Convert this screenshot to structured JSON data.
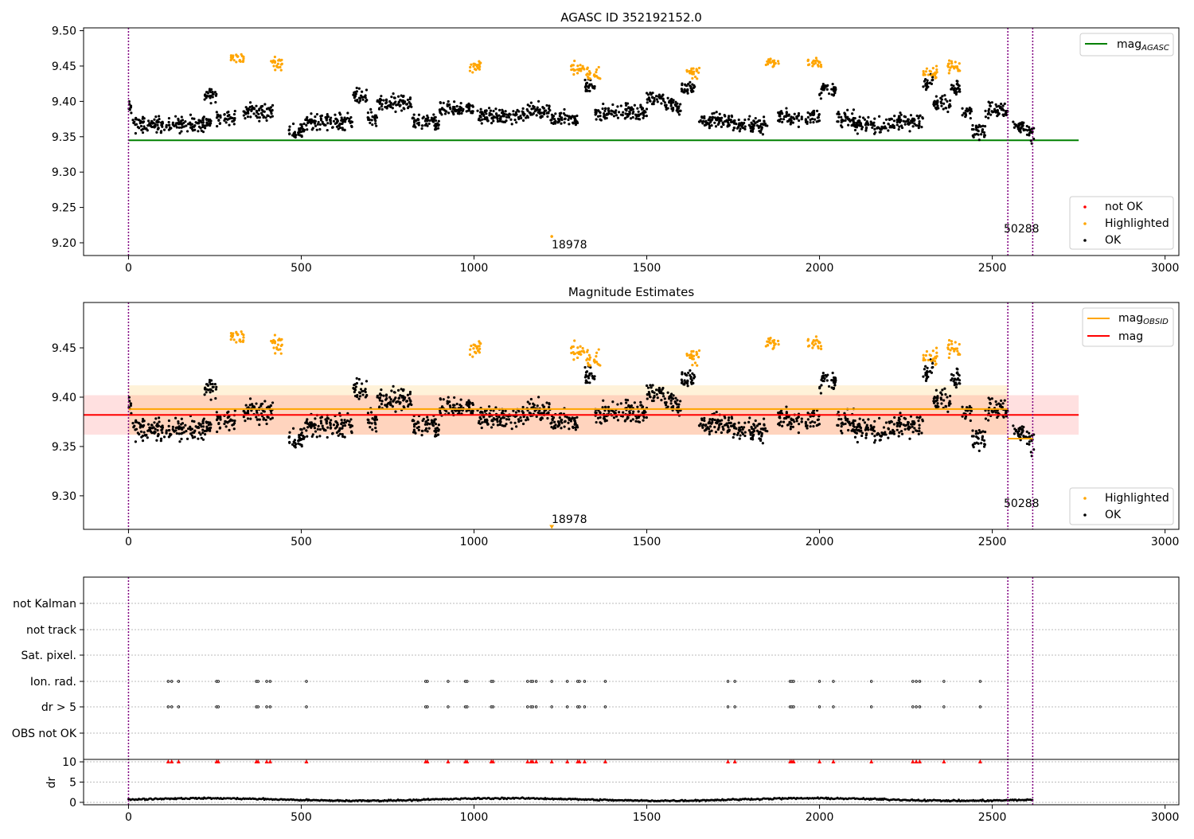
{
  "colors": {
    "ok": "#000000",
    "highlighted": "#ffa500",
    "not_ok": "#ff0000",
    "mag_agasc": "#008000",
    "mag_obsid": "#ffa500",
    "mag": "#ff0000",
    "vline": "#800080"
  },
  "markers": {
    "obsid_start_x": [
      0,
      2545,
      2617
    ],
    "obsid_labels": [
      {
        "x": 1220,
        "text": "18978"
      },
      {
        "x": 2545,
        "text": "50288"
      }
    ]
  },
  "chart_data": [
    {
      "type": "scatter",
      "title": "AGASC ID 352192152.0",
      "xlim": [
        -130,
        3040
      ],
      "ylim": [
        9.182,
        9.504
      ],
      "x_ticks": [
        0,
        500,
        1000,
        1500,
        2000,
        2500,
        3000
      ],
      "y_ticks": [
        9.2,
        9.25,
        9.3,
        9.35,
        9.4,
        9.45,
        9.5
      ],
      "y_tick_labels": [
        "9.20",
        "9.25",
        "9.30",
        "9.35",
        "9.40",
        "9.45",
        "9.50"
      ],
      "hlines": [
        {
          "name": "mag_AGASC",
          "y": 9.345,
          "x": [
            0,
            2750
          ]
        }
      ],
      "legend_lines": {
        "position": "top-right",
        "entries": [
          {
            "base": "mag",
            "sub": "AGASC"
          }
        ]
      },
      "legend_points": {
        "position": "bottom-right",
        "entries": [
          "not OK",
          "Highlighted",
          "OK"
        ]
      },
      "series": [
        {
          "name": "OK",
          "segments": [
            [
              0,
              10,
              9.389
            ],
            [
              10,
              120,
              9.367
            ],
            [
              120,
              240,
              9.368
            ],
            [
              220,
              255,
              9.411
            ],
            [
              255,
              310,
              9.376
            ],
            [
              330,
              420,
              9.386
            ],
            [
              460,
              510,
              9.358
            ],
            [
              510,
              560,
              9.372
            ],
            [
              560,
              650,
              9.371
            ],
            [
              650,
              690,
              9.407
            ],
            [
              690,
              720,
              9.377
            ],
            [
              720,
              820,
              9.397
            ],
            [
              820,
              900,
              9.369
            ],
            [
              900,
              1000,
              9.389
            ],
            [
              1010,
              1150,
              9.379
            ],
            [
              1150,
              1220,
              9.386
            ],
            [
              1220,
              1300,
              9.375
            ],
            [
              1320,
              1350,
              9.423
            ],
            [
              1350,
              1500,
              9.385
            ],
            [
              1500,
              1550,
              9.405
            ],
            [
              1550,
              1600,
              9.393
            ],
            [
              1600,
              1640,
              9.418
            ],
            [
              1650,
              1750,
              9.373
            ],
            [
              1750,
              1850,
              9.366
            ],
            [
              1880,
              1950,
              9.378
            ],
            [
              1960,
              2000,
              9.378
            ],
            [
              2000,
              2050,
              9.416
            ],
            [
              2050,
              2100,
              9.375
            ],
            [
              2100,
              2200,
              9.366
            ],
            [
              2200,
              2300,
              9.372
            ],
            [
              2300,
              2330,
              9.428
            ],
            [
              2330,
              2380,
              9.397
            ],
            [
              2380,
              2410,
              9.421
            ],
            [
              2410,
              2440,
              9.385
            ],
            [
              2440,
              2480,
              9.358
            ],
            [
              2480,
              2545,
              9.388
            ],
            [
              2560,
              2600,
              9.364
            ],
            [
              2600,
              2620,
              9.352
            ]
          ]
        },
        {
          "name": "Highlighted",
          "clusters": [
            [
              315,
              9.461
            ],
            [
              430,
              9.452
            ],
            [
              1000,
              9.449
            ],
            [
              1300,
              9.448
            ],
            [
              1345,
              9.438
            ],
            [
              1635,
              9.44
            ],
            [
              1865,
              9.454
            ],
            [
              1985,
              9.455
            ],
            [
              2320,
              9.44
            ],
            [
              2390,
              9.45
            ]
          ]
        },
        {
          "name": "not OK",
          "points": [
            [
              1225,
              9.209
            ]
          ]
        }
      ]
    },
    {
      "type": "scatter",
      "title": "Magnitude Estimates",
      "xlim": [
        -130,
        3040
      ],
      "ylim": [
        9.266,
        9.496
      ],
      "x_ticks": [
        0,
        500,
        1000,
        1500,
        2000,
        2500,
        3000
      ],
      "y_ticks": [
        9.3,
        9.35,
        9.4,
        9.45
      ],
      "y_tick_labels": [
        "9.30",
        "9.35",
        "9.40",
        "9.45"
      ],
      "bands": [
        {
          "name": "mag_OBSID",
          "x": [
            0,
            2545
          ],
          "y": [
            9.362,
            9.412
          ],
          "color": "#ffa500",
          "alpha": 0.15
        },
        {
          "name": "mag",
          "x": [
            -130,
            2750
          ],
          "y": [
            9.362,
            9.402
          ],
          "color": "#ff0000",
          "alpha": 0.12
        }
      ],
      "hlines": [
        {
          "name": "mag_OBSID",
          "y": 9.388,
          "x": [
            0,
            2545
          ]
        },
        {
          "name": "mag_OBSID",
          "y": 9.358,
          "x": [
            2545,
            2617
          ]
        },
        {
          "name": "mag",
          "y": 9.382,
          "x": [
            -130,
            2750
          ]
        }
      ],
      "legend_lines": {
        "position": "top-right",
        "entries": [
          {
            "base": "mag",
            "sub": "OBSID"
          },
          {
            "base": "mag",
            "sub": ""
          }
        ]
      },
      "legend_points": {
        "position": "bottom-right",
        "entries": [
          "Highlighted",
          "OK"
        ]
      },
      "offscale_marker": {
        "x": 1225,
        "y": 9.268
      }
    },
    {
      "type": "scatter",
      "title": "",
      "xlim": [
        -130,
        3040
      ],
      "x_ticks": [
        0,
        500,
        1000,
        1500,
        2000,
        2500,
        3000
      ],
      "flag_rows": [
        "not Kalman",
        "not track",
        "Sat. pixel.",
        "Ion. rad.",
        "dr > 5",
        "OBS not OK"
      ],
      "flag_events_x": [
        115,
        125,
        145,
        255,
        260,
        370,
        375,
        400,
        410,
        515,
        860,
        865,
        925,
        975,
        980,
        1050,
        1055,
        1155,
        1165,
        1170,
        1180,
        1225,
        1270,
        1300,
        1305,
        1320,
        1380,
        1735,
        1755,
        1915,
        1920,
        1925,
        2000,
        2040,
        2150,
        2270,
        2280,
        2290,
        2360,
        2465
      ],
      "flag_event_rows": [
        "Ion. rad.",
        "dr > 5"
      ],
      "dr_panel": {
        "ylabel": "dr",
        "y_ticks": [
          0,
          5,
          10
        ],
        "ylim": [
          -0.6,
          10.6
        ],
        "outlier_value": 10,
        "outlier_x": [
          115,
          125,
          145,
          255,
          260,
          370,
          375,
          400,
          410,
          515,
          860,
          865,
          925,
          975,
          980,
          1050,
          1055,
          1155,
          1165,
          1170,
          1180,
          1225,
          1270,
          1300,
          1305,
          1320,
          1380,
          1735,
          1755,
          1915,
          1920,
          1925,
          2000,
          2040,
          2150,
          2270,
          2280,
          2290,
          2360,
          2465
        ],
        "baseline": 0.7
      }
    }
  ]
}
